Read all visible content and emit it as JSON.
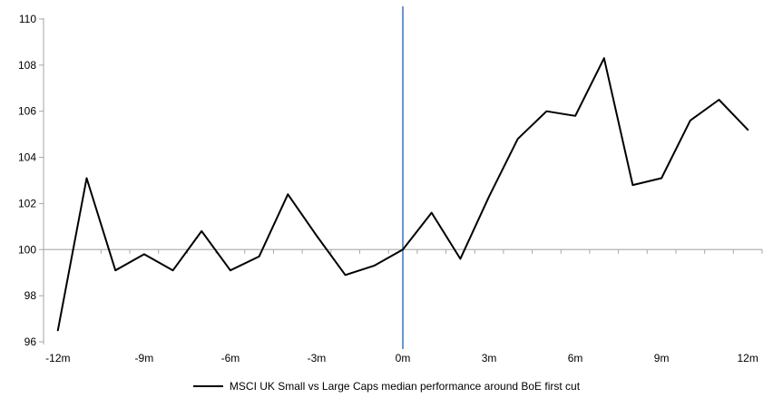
{
  "chart_data": {
    "type": "line",
    "title": "",
    "xlabel": "",
    "ylabel": "",
    "x": [
      -12,
      -11,
      -10,
      -9,
      -8,
      -7,
      -6,
      -5,
      -4,
      -3,
      -2,
      -1,
      0,
      1,
      2,
      3,
      4,
      5,
      6,
      7,
      8,
      9,
      10,
      11,
      12
    ],
    "series": [
      {
        "name": "MSCI UK Small vs Large Caps median performance around BoE first cut",
        "color": "#000000",
        "values": [
          96.5,
          103.1,
          99.1,
          99.8,
          99.1,
          100.8,
          99.1,
          99.7,
          102.4,
          100.6,
          98.9,
          99.3,
          100.0,
          101.6,
          99.6,
          102.3,
          104.8,
          106.0,
          105.8,
          108.3,
          102.8,
          103.1,
          105.6,
          106.5,
          105.2
        ]
      }
    ],
    "x_tick_labels": [
      "-12m",
      "-9m",
      "-6m",
      "-3m",
      "0m",
      "3m",
      "6m",
      "9m",
      "12m"
    ],
    "x_tick_months": [
      -12,
      -9,
      -6,
      -3,
      0,
      3,
      6,
      9,
      12
    ],
    "y_ticks": [
      96,
      98,
      100,
      102,
      104,
      106,
      108,
      110
    ],
    "ylim": [
      96,
      110
    ],
    "grid": "off",
    "legend_position": "bottom",
    "reference_lines": {
      "horizontal_y": 100,
      "horizontal_color": "#b3b3b3",
      "vertical_x": 0,
      "vertical_color": "#4f86c6"
    },
    "axis_color": "#a6a6a6",
    "text_color": "#000000",
    "background_color": "#ffffff"
  }
}
